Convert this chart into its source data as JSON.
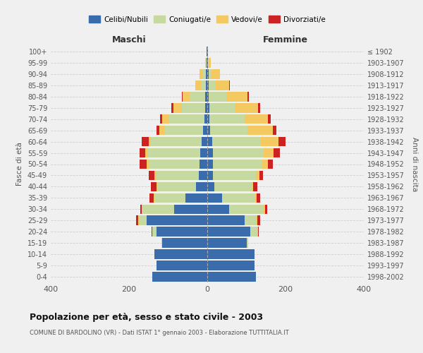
{
  "age_groups": [
    "0-4",
    "5-9",
    "10-14",
    "15-19",
    "20-24",
    "25-29",
    "30-34",
    "35-39",
    "40-44",
    "45-49",
    "50-54",
    "55-59",
    "60-64",
    "65-69",
    "70-74",
    "75-79",
    "80-84",
    "85-89",
    "90-94",
    "95-99",
    "100+"
  ],
  "birth_years": [
    "1998-2002",
    "1993-1997",
    "1988-1992",
    "1983-1987",
    "1978-1982",
    "1973-1977",
    "1968-1972",
    "1963-1967",
    "1958-1962",
    "1953-1957",
    "1948-1952",
    "1943-1947",
    "1938-1942",
    "1933-1937",
    "1928-1932",
    "1923-1927",
    "1918-1922",
    "1913-1917",
    "1908-1912",
    "1903-1907",
    "≤ 1902"
  ],
  "males": {
    "celibi": [
      140,
      130,
      135,
      115,
      130,
      155,
      85,
      55,
      28,
      22,
      20,
      18,
      15,
      10,
      8,
      5,
      5,
      3,
      3,
      2,
      1
    ],
    "coniugati": [
      0,
      0,
      0,
      2,
      10,
      20,
      80,
      80,
      100,
      110,
      130,
      135,
      130,
      100,
      90,
      60,
      40,
      14,
      8,
      2,
      0
    ],
    "vedovi": [
      0,
      0,
      0,
      0,
      0,
      2,
      2,
      2,
      2,
      3,
      5,
      5,
      5,
      12,
      18,
      22,
      18,
      14,
      8,
      2,
      0
    ],
    "divorziati": [
      0,
      0,
      0,
      0,
      2,
      5,
      5,
      10,
      14,
      15,
      18,
      15,
      18,
      8,
      5,
      5,
      2,
      0,
      0,
      0,
      0
    ]
  },
  "females": {
    "nubili": [
      125,
      120,
      120,
      100,
      110,
      95,
      55,
      38,
      18,
      15,
      15,
      15,
      12,
      7,
      5,
      5,
      3,
      3,
      3,
      2,
      1
    ],
    "coniugate": [
      0,
      0,
      0,
      5,
      18,
      30,
      90,
      85,
      95,
      110,
      125,
      130,
      125,
      95,
      90,
      65,
      45,
      18,
      8,
      2,
      0
    ],
    "vedove": [
      0,
      0,
      0,
      0,
      2,
      3,
      3,
      3,
      5,
      8,
      15,
      25,
      45,
      65,
      60,
      60,
      55,
      35,
      22,
      5,
      0
    ],
    "divorziate": [
      0,
      0,
      0,
      0,
      2,
      8,
      5,
      10,
      10,
      10,
      12,
      15,
      18,
      10,
      8,
      5,
      3,
      2,
      0,
      0,
      0
    ]
  },
  "colors": {
    "celibi_nubili": "#3a6cac",
    "coniugati": "#c5d9a0",
    "vedovi": "#f5c962",
    "divorziati": "#cc2222"
  },
  "xlim": [
    -400,
    400
  ],
  "title": "Popolazione per età, sesso e stato civile - 2003",
  "subtitle": "COMUNE DI BARDOLINO (VR) - Dati ISTAT 1° gennaio 2003 - Elaborazione TUTTITALIA.IT",
  "ylabel_left": "Fasce di età",
  "ylabel_right": "Anni di nascita",
  "xlabel_maschi": "Maschi",
  "xlabel_femmine": "Femmine",
  "legend_labels": [
    "Celibi/Nubili",
    "Coniugati/e",
    "Vedovi/e",
    "Divorziati/e"
  ],
  "background_color": "#f0f0f0",
  "bar_height": 0.85
}
